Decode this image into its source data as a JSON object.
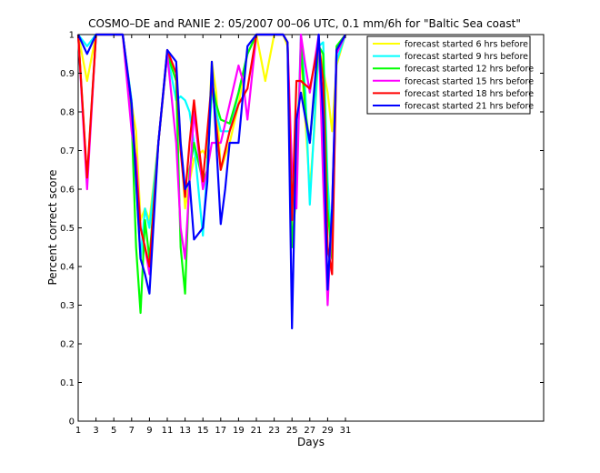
{
  "chart_data": {
    "type": "line",
    "title": "COSMO–DE and RANIE 2: 05/2007 00–06 UTC, 0.1 mm/6h for \"Baltic Sea coast\"",
    "xlabel": "Days",
    "ylabel": "Percent correct score",
    "xlim": [
      1,
      31
    ],
    "ylim": [
      0,
      1
    ],
    "xticks": [
      "1",
      "3",
      "5",
      "7",
      "9",
      "11",
      "13",
      "15",
      "17",
      "19",
      "21",
      "23",
      "25",
      "27",
      "29",
      "31"
    ],
    "yticks": [
      "0",
      "0.1",
      "0.2",
      "0.3",
      "0.4",
      "0.5",
      "0.6",
      "0.7",
      "0.8",
      "0.9",
      "1"
    ],
    "grid": false,
    "legend_position": "top-right",
    "series": [
      {
        "name": "forecast started 6 hrs before",
        "color": "#ffff00",
        "x": [
          1,
          2,
          3,
          4,
          5,
          6,
          7,
          7.5,
          8,
          8.5,
          9,
          9.5,
          10,
          11,
          12,
          13,
          13.5,
          14,
          15,
          15.5,
          16,
          16.5,
          17,
          18,
          19,
          20,
          21,
          22,
          23,
          24,
          24.5,
          25,
          25.5,
          26,
          27,
          27.5,
          28,
          29,
          29.5,
          30,
          31
        ],
        "y": [
          1,
          0.88,
          1,
          1,
          1,
          1,
          0.82,
          0.75,
          0.52,
          0.55,
          0.52,
          0.62,
          0.72,
          0.95,
          0.9,
          0.55,
          0.62,
          0.68,
          0.7,
          0.68,
          0.93,
          0.85,
          0.65,
          0.72,
          0.82,
          0.95,
          1,
          0.88,
          1,
          1,
          0.97,
          0.5,
          0.7,
          0.95,
          0.6,
          0.75,
          0.97,
          0.85,
          0.75,
          0.92,
          1
        ]
      },
      {
        "name": "forecast started 9 hrs before",
        "color": "#00ffff",
        "x": [
          1,
          2,
          3,
          4,
          5,
          6,
          7,
          7.5,
          8,
          8.5,
          9,
          10,
          11,
          12,
          12.5,
          13,
          13.5,
          14,
          15,
          16,
          17,
          18,
          19,
          20,
          21,
          22,
          23,
          24,
          24.5,
          25,
          25.5,
          26,
          26.5,
          27,
          28,
          28.5,
          29,
          29.5,
          30,
          31
        ],
        "y": [
          1,
          0.97,
          1,
          1,
          1,
          1,
          0.83,
          0.62,
          0.42,
          0.55,
          0.5,
          0.72,
          0.95,
          0.83,
          0.84,
          0.83,
          0.8,
          0.72,
          0.48,
          0.85,
          0.75,
          0.75,
          0.85,
          0.95,
          1,
          1,
          1,
          1,
          0.98,
          0.55,
          0.62,
          1,
          0.85,
          0.56,
          0.97,
          0.98,
          0.62,
          0.45,
          0.93,
          1
        ]
      },
      {
        "name": "forecast started 12 hrs before",
        "color": "#00ff00",
        "x": [
          1,
          2,
          3,
          4,
          5,
          6,
          7,
          7.5,
          8,
          8.5,
          9,
          10,
          11,
          12,
          12.5,
          13,
          13.5,
          14,
          15,
          15.5,
          16,
          16.5,
          17,
          18,
          19,
          20,
          21,
          22,
          23,
          24,
          24.5,
          25,
          25.5,
          26,
          26.5,
          27,
          28,
          28.5,
          29,
          29.5,
          30,
          31
        ],
        "y": [
          1,
          0.62,
          1,
          1,
          1,
          1,
          0.78,
          0.45,
          0.28,
          0.52,
          0.42,
          0.72,
          0.95,
          0.88,
          0.45,
          0.33,
          0.65,
          0.72,
          0.62,
          0.65,
          0.88,
          0.82,
          0.78,
          0.77,
          0.85,
          0.95,
          1,
          1,
          1,
          1,
          0.98,
          0.45,
          0.6,
          0.98,
          0.8,
          0.72,
          0.97,
          0.95,
          0.55,
          0.42,
          0.97,
          1
        ]
      },
      {
        "name": "forecast started 15 hrs before",
        "color": "#ff00ff",
        "x": [
          1,
          2,
          3,
          4,
          5,
          6,
          7,
          7.5,
          8,
          8.5,
          9,
          10,
          11,
          12,
          12.5,
          13,
          13.5,
          14,
          15,
          15.5,
          16,
          16.5,
          17,
          18,
          19,
          19.5,
          20,
          21,
          22,
          23,
          24,
          24.5,
          25,
          25.5,
          26,
          26.5,
          27,
          28,
          28.5,
          29,
          29.5,
          30,
          31
        ],
        "y": [
          1,
          0.6,
          1,
          1,
          1,
          1,
          0.75,
          0.68,
          0.5,
          0.45,
          0.38,
          0.72,
          0.95,
          0.72,
          0.5,
          0.42,
          0.62,
          0.8,
          0.6,
          0.65,
          0.72,
          0.72,
          0.72,
          0.82,
          0.92,
          0.88,
          0.78,
          1,
          1,
          1,
          1,
          0.98,
          0.65,
          0.55,
          1,
          0.92,
          0.85,
          1,
          0.62,
          0.3,
          0.55,
          0.95,
          1
        ]
      },
      {
        "name": "forecast started 18 hrs before",
        "color": "#ff0000",
        "x": [
          1,
          2,
          3,
          4,
          5,
          6,
          7,
          7.5,
          8,
          8.5,
          9,
          10,
          11,
          12,
          12.5,
          13,
          13.5,
          14,
          14.5,
          15,
          16,
          17,
          18,
          19,
          20,
          21,
          22,
          23,
          24,
          24.5,
          25,
          25.5,
          26,
          27,
          28,
          28.5,
          29,
          29.5,
          30,
          31
        ],
        "y": [
          1,
          0.63,
          1,
          1,
          1,
          1,
          0.82,
          0.65,
          0.5,
          0.45,
          0.4,
          0.72,
          0.96,
          0.9,
          0.7,
          0.58,
          0.72,
          0.83,
          0.72,
          0.62,
          0.88,
          0.65,
          0.75,
          0.82,
          0.86,
          1,
          1,
          1,
          1,
          0.98,
          0.52,
          0.88,
          0.88,
          0.86,
          0.98,
          0.88,
          0.45,
          0.38,
          0.96,
          1
        ]
      },
      {
        "name": "forecast started 21 hrs before",
        "color": "#0000ff",
        "x": [
          1,
          2,
          3,
          4,
          5,
          6,
          7,
          7.5,
          8,
          8.5,
          9,
          10,
          11,
          12,
          12.5,
          13,
          13.5,
          14,
          15,
          15.5,
          16,
          17,
          17.5,
          18,
          19,
          20,
          21,
          22,
          23,
          24,
          24.5,
          25,
          25.5,
          26,
          27,
          28,
          28.5,
          29,
          29.5,
          30,
          31
        ],
        "y": [
          1,
          0.95,
          1,
          1,
          1,
          1,
          0.82,
          0.62,
          0.42,
          0.38,
          0.33,
          0.72,
          0.96,
          0.93,
          0.72,
          0.6,
          0.62,
          0.47,
          0.5,
          0.62,
          0.93,
          0.51,
          0.6,
          0.72,
          0.72,
          0.97,
          1,
          1,
          1,
          1,
          0.98,
          0.24,
          0.78,
          0.85,
          0.72,
          1,
          0.78,
          0.34,
          0.55,
          0.96,
          1
        ]
      }
    ]
  }
}
